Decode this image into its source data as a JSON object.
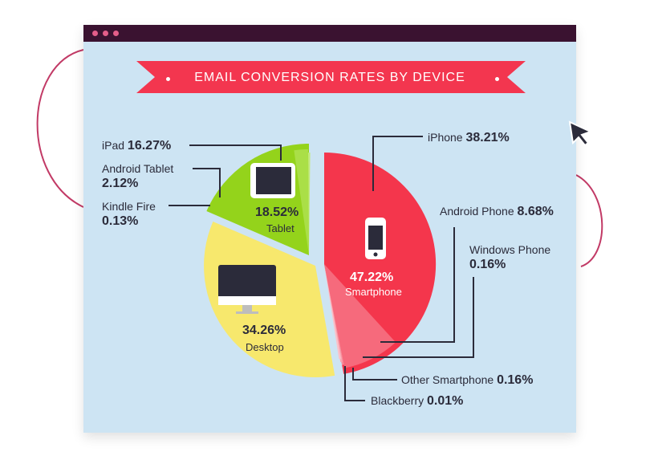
{
  "colors": {
    "smartphone": "#f4364c",
    "smartphone_light": "#f66a7c",
    "tablet": "#94d31b",
    "desktop": "#f7e86d",
    "banner": "#f3364f",
    "background": "#cde4f3",
    "titlebar": "#3a1230",
    "lines": "#2b2b3a"
  },
  "icons": [
    "window-dot-icon",
    "smartphone-icon",
    "tablet-icon",
    "desktop-monitor-icon",
    "mouse-cursor-icon"
  ],
  "chart_data": {
    "type": "pie",
    "title": "EMAIL CONVERSION RATES BY DEVICE",
    "slices": [
      {
        "label": "Smartphone",
        "value": 47.22,
        "value_text": "47.22%"
      },
      {
        "label": "Desktop",
        "value": 34.26,
        "value_text": "34.26%"
      },
      {
        "label": "Tablet",
        "value": 18.52,
        "value_text": "18.52%"
      }
    ],
    "sub_slices": {
      "Smartphone": [
        {
          "label": "iPhone",
          "value": 38.21,
          "value_text": "38.21%"
        },
        {
          "label": "Android Phone",
          "value": 8.68,
          "value_text": "8.68%"
        },
        {
          "label": "Windows Phone",
          "value": 0.16,
          "value_text": "0.16%"
        },
        {
          "label": "Other Smartphone",
          "value": 0.16,
          "value_text": "0.16%"
        },
        {
          "label": "Blackberry",
          "value": 0.01,
          "value_text": "0.01%"
        }
      ],
      "Tablet": [
        {
          "label": "iPad",
          "value": 16.27,
          "value_text": "16.27%"
        },
        {
          "label": "Android Tablet",
          "value": 2.12,
          "value_text": "2.12%"
        },
        {
          "label": "Kindle Fire",
          "value": 0.13,
          "value_text": "0.13%"
        }
      ]
    },
    "legend": "none",
    "grid": false
  }
}
